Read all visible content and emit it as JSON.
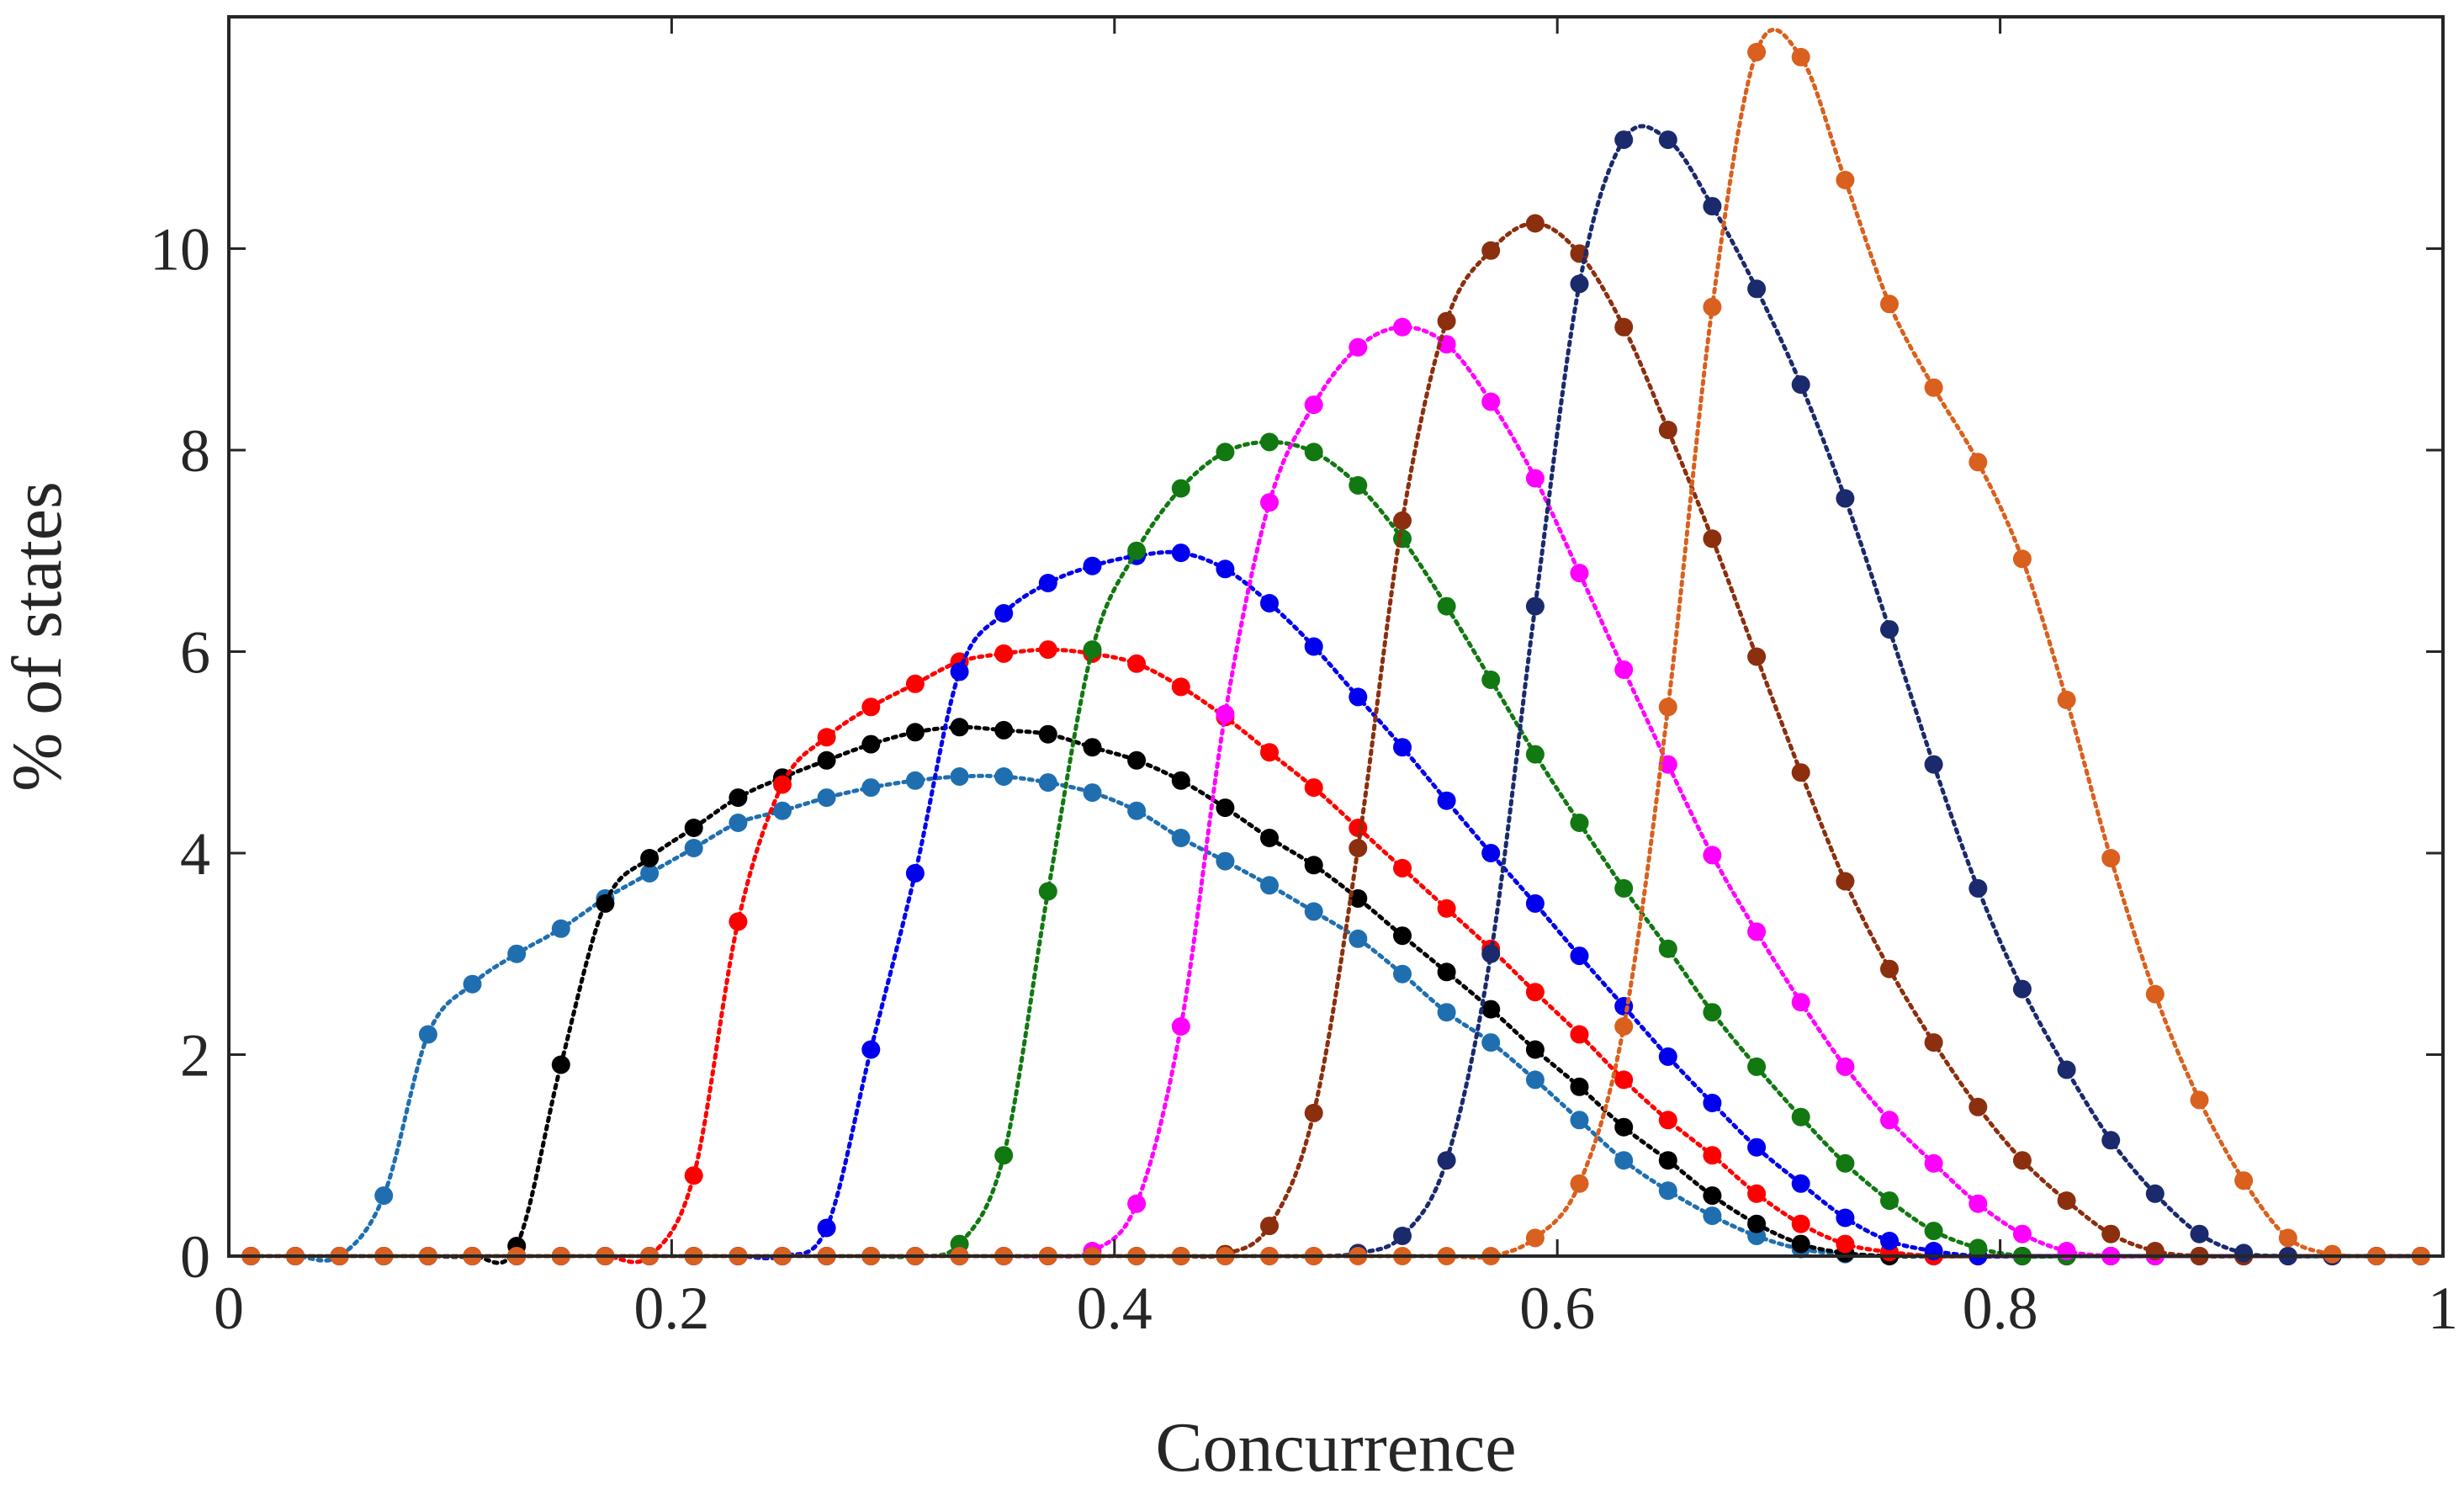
{
  "chart_data": {
    "type": "line",
    "title": "",
    "xlabel": "Concurrence",
    "ylabel": "% of states",
    "xlim": [
      0,
      1
    ],
    "ylim": [
      0,
      12.3
    ],
    "xticks": [
      0,
      0.2,
      0.4,
      0.6,
      0.8,
      1
    ],
    "xtick_labels": [
      "0",
      "0.2",
      "0.4",
      "0.6",
      "0.8",
      "1"
    ],
    "yticks": [
      0,
      2,
      4,
      6,
      8,
      10
    ],
    "ytick_labels": [
      "0",
      "2",
      "4",
      "6",
      "8",
      "10"
    ],
    "grid": false,
    "legend": "none",
    "line_style": "dotted",
    "x": [
      0.01,
      0.03,
      0.05,
      0.07,
      0.09,
      0.11,
      0.13,
      0.15,
      0.17,
      0.19,
      0.21,
      0.23,
      0.25,
      0.27,
      0.29,
      0.31,
      0.33,
      0.35,
      0.37,
      0.39,
      0.41,
      0.43,
      0.45,
      0.47,
      0.49,
      0.51,
      0.53,
      0.55,
      0.57,
      0.59,
      0.61,
      0.63,
      0.65,
      0.67,
      0.69,
      0.71,
      0.73,
      0.75,
      0.77,
      0.79,
      0.81,
      0.83,
      0.85,
      0.87,
      0.89,
      0.91,
      0.93,
      0.95,
      0.97,
      0.99
    ],
    "series": [
      {
        "name": "series-1",
        "color": "#1f6fb0",
        "values": [
          0,
          0,
          0,
          0.6,
          2.2,
          2.7,
          3.0,
          3.25,
          3.55,
          3.8,
          4.05,
          4.3,
          4.42,
          4.55,
          4.65,
          4.72,
          4.76,
          4.76,
          4.7,
          4.6,
          4.42,
          4.15,
          3.92,
          3.68,
          3.42,
          3.15,
          2.8,
          2.42,
          2.12,
          1.75,
          1.35,
          0.95,
          0.65,
          0.4,
          0.2,
          0.07,
          0.02,
          0,
          0,
          0,
          0,
          0,
          0,
          0,
          0,
          0,
          0,
          0,
          0,
          0
        ]
      },
      {
        "name": "series-2",
        "color": "#000000",
        "values": [
          0,
          0,
          0,
          0,
          0,
          0,
          0.1,
          1.9,
          3.5,
          3.95,
          4.25,
          4.55,
          4.75,
          4.92,
          5.08,
          5.2,
          5.25,
          5.22,
          5.18,
          5.05,
          4.92,
          4.72,
          4.45,
          4.15,
          3.88,
          3.55,
          3.18,
          2.82,
          2.45,
          2.05,
          1.68,
          1.28,
          0.95,
          0.6,
          0.32,
          0.12,
          0.03,
          0,
          0,
          0,
          0,
          0,
          0,
          0,
          0,
          0,
          0,
          0,
          0,
          0
        ]
      },
      {
        "name": "series-3",
        "color": "#ff0000",
        "values": [
          0,
          0,
          0,
          0,
          0,
          0,
          0,
          0,
          0,
          0,
          0.8,
          3.32,
          4.68,
          5.15,
          5.45,
          5.68,
          5.9,
          5.98,
          6.02,
          5.98,
          5.88,
          5.65,
          5.35,
          5.0,
          4.65,
          4.25,
          3.85,
          3.45,
          3.05,
          2.62,
          2.2,
          1.75,
          1.35,
          1.0,
          0.62,
          0.32,
          0.12,
          0.04,
          0,
          0,
          0,
          0,
          0,
          0,
          0,
          0,
          0,
          0,
          0,
          0
        ]
      },
      {
        "name": "series-4",
        "color": "#0000ee",
        "values": [
          0,
          0,
          0,
          0,
          0,
          0,
          0,
          0,
          0,
          0,
          0,
          0,
          0,
          0.28,
          2.05,
          3.8,
          5.8,
          6.38,
          6.68,
          6.85,
          6.95,
          6.98,
          6.82,
          6.48,
          6.05,
          5.55,
          5.05,
          4.52,
          4.0,
          3.5,
          2.98,
          2.48,
          1.98,
          1.52,
          1.08,
          0.72,
          0.38,
          0.15,
          0.05,
          0,
          0,
          0,
          0,
          0,
          0,
          0,
          0,
          0,
          0,
          0
        ]
      },
      {
        "name": "series-5",
        "color": "#127812",
        "values": [
          0,
          0,
          0,
          0,
          0,
          0,
          0,
          0,
          0,
          0,
          0,
          0,
          0,
          0,
          0,
          0,
          0.12,
          1.0,
          3.62,
          6.02,
          7.0,
          7.62,
          7.98,
          8.08,
          7.98,
          7.65,
          7.12,
          6.45,
          5.72,
          4.98,
          4.3,
          3.65,
          3.05,
          2.42,
          1.88,
          1.38,
          0.92,
          0.55,
          0.25,
          0.08,
          0,
          0,
          0,
          0,
          0,
          0,
          0,
          0,
          0,
          0
        ]
      },
      {
        "name": "series-6",
        "color": "#ff00ff",
        "values": [
          0,
          0,
          0,
          0,
          0,
          0,
          0,
          0,
          0,
          0,
          0,
          0,
          0,
          0,
          0,
          0,
          0,
          0,
          0,
          0.05,
          0.52,
          2.28,
          5.38,
          7.48,
          8.45,
          9.02,
          9.22,
          9.05,
          8.48,
          7.72,
          6.78,
          5.82,
          4.88,
          3.98,
          3.22,
          2.52,
          1.88,
          1.35,
          0.92,
          0.52,
          0.22,
          0.05,
          0,
          0,
          0,
          0,
          0,
          0,
          0,
          0
        ]
      },
      {
        "name": "series-7",
        "color": "#8b2f0e",
        "values": [
          0,
          0,
          0,
          0,
          0,
          0,
          0,
          0,
          0,
          0,
          0,
          0,
          0,
          0,
          0,
          0,
          0,
          0,
          0,
          0,
          0,
          0,
          0.02,
          0.3,
          1.42,
          4.05,
          7.3,
          9.28,
          9.98,
          10.25,
          9.95,
          9.22,
          8.2,
          7.12,
          5.95,
          4.8,
          3.72,
          2.85,
          2.12,
          1.48,
          0.95,
          0.55,
          0.22,
          0.05,
          0,
          0,
          0,
          0,
          0,
          0
        ]
      },
      {
        "name": "series-8",
        "color": "#1a2a6c",
        "values": [
          0,
          0,
          0,
          0,
          0,
          0,
          0,
          0,
          0,
          0,
          0,
          0,
          0,
          0,
          0,
          0,
          0,
          0,
          0,
          0,
          0,
          0,
          0,
          0,
          0,
          0.03,
          0.2,
          0.95,
          3.0,
          6.45,
          9.65,
          11.08,
          11.08,
          10.42,
          9.6,
          8.65,
          7.52,
          6.22,
          4.88,
          3.65,
          2.65,
          1.85,
          1.15,
          0.62,
          0.22,
          0.03,
          0,
          0,
          0,
          0
        ]
      },
      {
        "name": "series-9",
        "color": "#d9601e",
        "values": [
          0,
          0,
          0,
          0,
          0,
          0,
          0,
          0,
          0,
          0,
          0,
          0,
          0,
          0,
          0,
          0,
          0,
          0,
          0,
          0,
          0,
          0,
          0,
          0,
          0,
          0,
          0,
          0,
          0,
          0.18,
          0.72,
          2.28,
          5.45,
          9.42,
          11.95,
          11.9,
          10.68,
          9.45,
          8.62,
          7.88,
          6.92,
          5.52,
          3.95,
          2.6,
          1.55,
          0.75,
          0.18,
          0.02,
          0,
          0
        ]
      }
    ]
  }
}
